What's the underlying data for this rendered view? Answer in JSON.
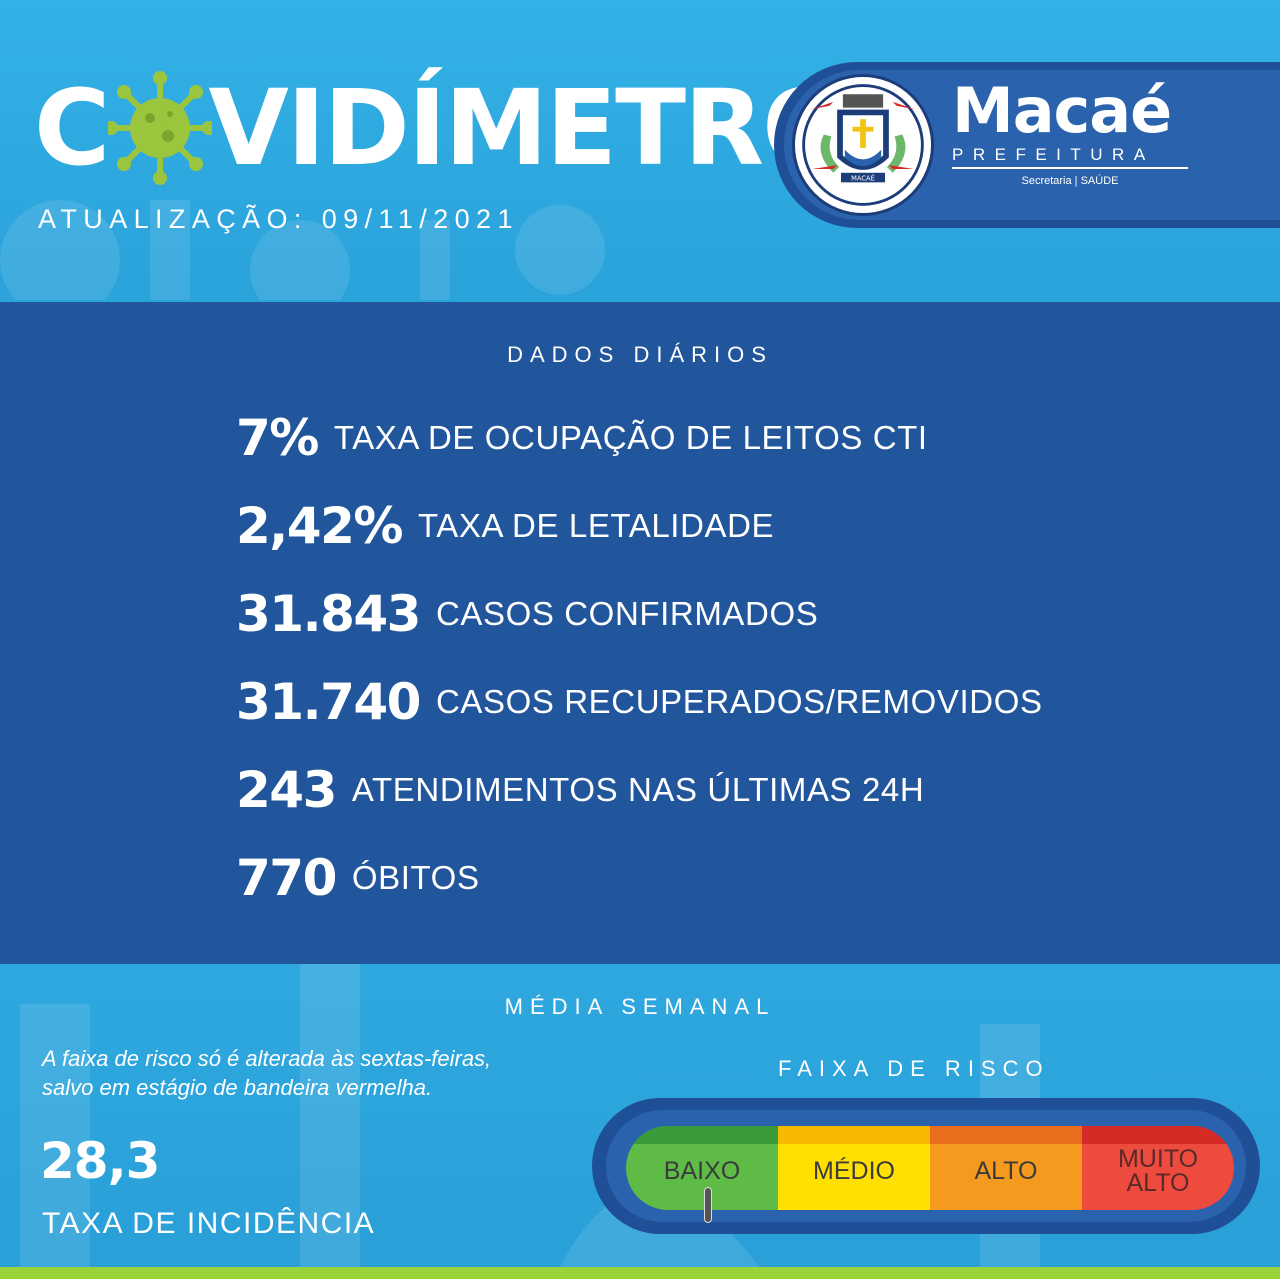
{
  "header": {
    "title_rest": "VIDÍMETRO",
    "title_first_letter": "CO",
    "update": "ATUALIZAÇÃO: 09/11/2021",
    "brand_name": "Macaé",
    "brand_sub": "PREFEITURA",
    "brand_secretaria": "Secretaria | SAÚDE",
    "seal_text": "MACAÉ"
  },
  "daily": {
    "title": "DADOS DIÁRIOS",
    "stats": [
      {
        "value": "7%",
        "label": "TAXA DE OCUPAÇÃO DE LEITOS CTI"
      },
      {
        "value": "2,42%",
        "label": "TAXA DE LETALIDADE"
      },
      {
        "value": "31.843",
        "label": "CASOS CONFIRMADOS"
      },
      {
        "value": "31.740",
        "label": "CASOS RECUPERADOS/REMOVIDOS"
      },
      {
        "value": "243",
        "label": "ATENDIMENTOS NAS ÚLTIMAS 24H"
      },
      {
        "value": "770",
        "label": "ÓBITOS"
      }
    ]
  },
  "weekly": {
    "title": "MÉDIA SEMANAL",
    "note_line1": "A faixa de risco só é alterada às sextas-feiras,",
    "note_line2": "salvo em estágio de bandeira vermelha.",
    "incidence_value": "28,3",
    "incidence_label": "TAXA DE INCIDÊNCIA",
    "risk_title": "FAIXA DE RISCO",
    "risk_levels": [
      "BAIXO",
      "MÉDIO",
      "ALTO",
      "MUITO ALTO"
    ],
    "risk_current": "BAIXO"
  },
  "colors": {
    "light_blue": "#2aa4dc",
    "dark_blue": "#22569c",
    "virus_green": "#9bc53d",
    "baixo": "#5dbb46",
    "medio": "#ffe000",
    "alto": "#f39a1f",
    "muito_alto": "#ee4b3f"
  }
}
